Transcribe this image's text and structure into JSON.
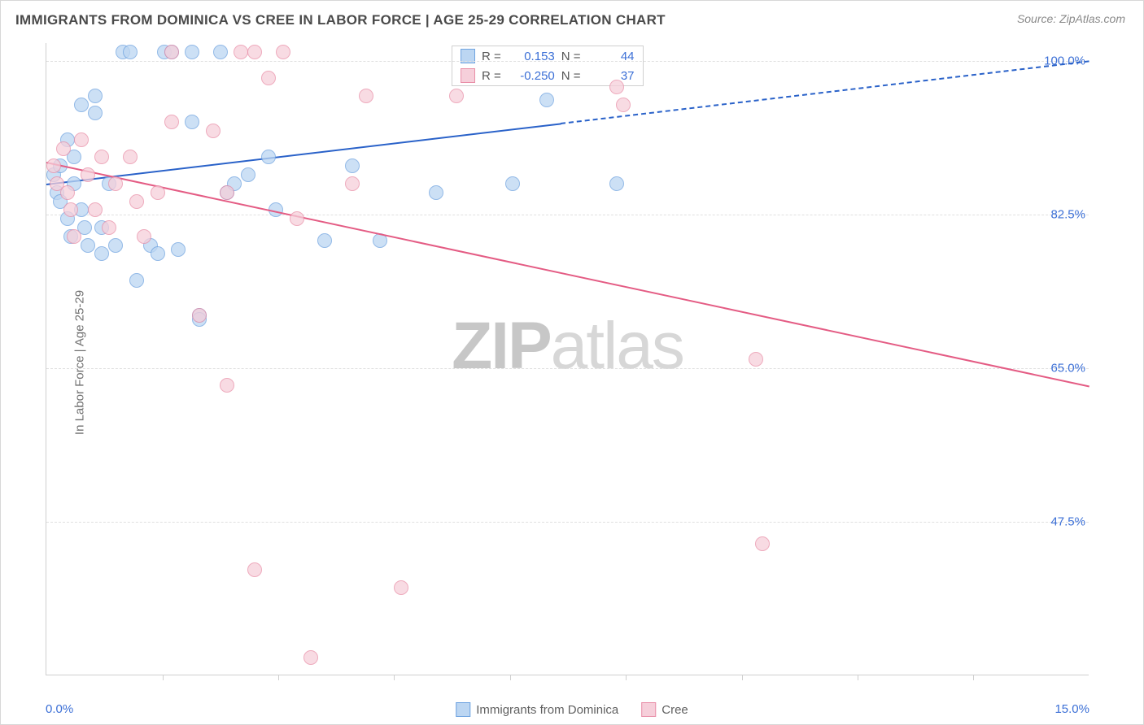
{
  "title": "IMMIGRANTS FROM DOMINICA VS CREE IN LABOR FORCE | AGE 25-29 CORRELATION CHART",
  "source_prefix": "Source: ",
  "source_name": "ZipAtlas.com",
  "y_label": "In Labor Force | Age 25-29",
  "x_origin_label": "0.0%",
  "x_max_label": "15.0%",
  "watermark": {
    "bold": "ZIP",
    "light": "atlas"
  },
  "chart": {
    "type": "scatter",
    "xlim": [
      0,
      15
    ],
    "ylim": [
      30,
      102
    ],
    "x_ticks": [
      1.67,
      3.33,
      5.0,
      6.67,
      8.33,
      10.0,
      11.67,
      13.33
    ],
    "y_ticks": [
      {
        "v": 100.0,
        "label": "100.0%"
      },
      {
        "v": 82.5,
        "label": "82.5%"
      },
      {
        "v": 65.0,
        "label": "65.0%"
      },
      {
        "v": 47.5,
        "label": "47.5%"
      }
    ],
    "grid_color": "#e0e0e0",
    "axis_color": "#cfcfcf",
    "marker_radius": 9,
    "series": [
      {
        "name": "Immigrants from Dominica",
        "fill": "#bcd6f2",
        "stroke": "#6fa3e0",
        "line_color": "#2a62c9",
        "r": "0.153",
        "n": "44",
        "trend": {
          "x1": 0.0,
          "y1": 86.0,
          "x2": 15.0,
          "y2": 100.0,
          "solid_until_x": 7.4
        },
        "points": [
          {
            "x": 0.1,
            "y": 87
          },
          {
            "x": 0.15,
            "y": 85
          },
          {
            "x": 0.2,
            "y": 88
          },
          {
            "x": 0.2,
            "y": 84
          },
          {
            "x": 0.3,
            "y": 91
          },
          {
            "x": 0.3,
            "y": 82
          },
          {
            "x": 0.35,
            "y": 80
          },
          {
            "x": 0.4,
            "y": 86
          },
          {
            "x": 0.4,
            "y": 89
          },
          {
            "x": 0.5,
            "y": 95
          },
          {
            "x": 0.5,
            "y": 83
          },
          {
            "x": 0.55,
            "y": 81
          },
          {
            "x": 0.6,
            "y": 79
          },
          {
            "x": 0.7,
            "y": 94
          },
          {
            "x": 0.7,
            "y": 96
          },
          {
            "x": 0.8,
            "y": 78
          },
          {
            "x": 0.8,
            "y": 81
          },
          {
            "x": 0.9,
            "y": 86
          },
          {
            "x": 1.0,
            "y": 79
          },
          {
            "x": 1.1,
            "y": 101
          },
          {
            "x": 1.2,
            "y": 101
          },
          {
            "x": 1.3,
            "y": 75
          },
          {
            "x": 1.5,
            "y": 79
          },
          {
            "x": 1.6,
            "y": 78
          },
          {
            "x": 1.7,
            "y": 101
          },
          {
            "x": 1.8,
            "y": 101
          },
          {
            "x": 1.9,
            "y": 78.5
          },
          {
            "x": 2.1,
            "y": 93
          },
          {
            "x": 2.1,
            "y": 101
          },
          {
            "x": 2.2,
            "y": 71
          },
          {
            "x": 2.2,
            "y": 70.5
          },
          {
            "x": 2.5,
            "y": 101
          },
          {
            "x": 2.6,
            "y": 85
          },
          {
            "x": 2.7,
            "y": 86
          },
          {
            "x": 2.9,
            "y": 87
          },
          {
            "x": 3.2,
            "y": 89
          },
          {
            "x": 3.3,
            "y": 83
          },
          {
            "x": 4.0,
            "y": 79.5
          },
          {
            "x": 4.4,
            "y": 88
          },
          {
            "x": 4.8,
            "y": 79.5
          },
          {
            "x": 5.6,
            "y": 85
          },
          {
            "x": 6.7,
            "y": 86
          },
          {
            "x": 7.2,
            "y": 95.5
          },
          {
            "x": 8.2,
            "y": 86
          }
        ]
      },
      {
        "name": "Cree",
        "fill": "#f6cfda",
        "stroke": "#e98fa8",
        "line_color": "#e45c84",
        "r": "-0.250",
        "n": "37",
        "trend": {
          "x1": 0.0,
          "y1": 88.5,
          "x2": 15.0,
          "y2": 63.0,
          "solid_until_x": 15.0
        },
        "points": [
          {
            "x": 0.1,
            "y": 88
          },
          {
            "x": 0.15,
            "y": 86
          },
          {
            "x": 0.25,
            "y": 90
          },
          {
            "x": 0.3,
            "y": 85
          },
          {
            "x": 0.35,
            "y": 83
          },
          {
            "x": 0.4,
            "y": 80
          },
          {
            "x": 0.5,
            "y": 91
          },
          {
            "x": 0.6,
            "y": 87
          },
          {
            "x": 0.7,
            "y": 83
          },
          {
            "x": 0.8,
            "y": 89
          },
          {
            "x": 0.9,
            "y": 81
          },
          {
            "x": 1.0,
            "y": 86
          },
          {
            "x": 1.2,
            "y": 89
          },
          {
            "x": 1.3,
            "y": 84
          },
          {
            "x": 1.4,
            "y": 80
          },
          {
            "x": 1.6,
            "y": 85
          },
          {
            "x": 1.8,
            "y": 93
          },
          {
            "x": 1.8,
            "y": 101
          },
          {
            "x": 2.2,
            "y": 71
          },
          {
            "x": 2.4,
            "y": 92
          },
          {
            "x": 2.6,
            "y": 85
          },
          {
            "x": 2.6,
            "y": 63
          },
          {
            "x": 2.8,
            "y": 101
          },
          {
            "x": 3.0,
            "y": 101
          },
          {
            "x": 3.0,
            "y": 42
          },
          {
            "x": 3.2,
            "y": 98
          },
          {
            "x": 3.4,
            "y": 101
          },
          {
            "x": 3.6,
            "y": 82
          },
          {
            "x": 3.8,
            "y": 32
          },
          {
            "x": 4.4,
            "y": 86
          },
          {
            "x": 4.6,
            "y": 96
          },
          {
            "x": 5.1,
            "y": 40
          },
          {
            "x": 5.9,
            "y": 96
          },
          {
            "x": 8.3,
            "y": 95
          },
          {
            "x": 8.2,
            "y": 97
          },
          {
            "x": 10.2,
            "y": 66
          },
          {
            "x": 10.3,
            "y": 45
          }
        ]
      }
    ]
  },
  "legend_top": {
    "r_label": "R =",
    "n_label": "N ="
  },
  "legend_bottom_labels": [
    "Immigrants from Dominica",
    "Cree"
  ]
}
